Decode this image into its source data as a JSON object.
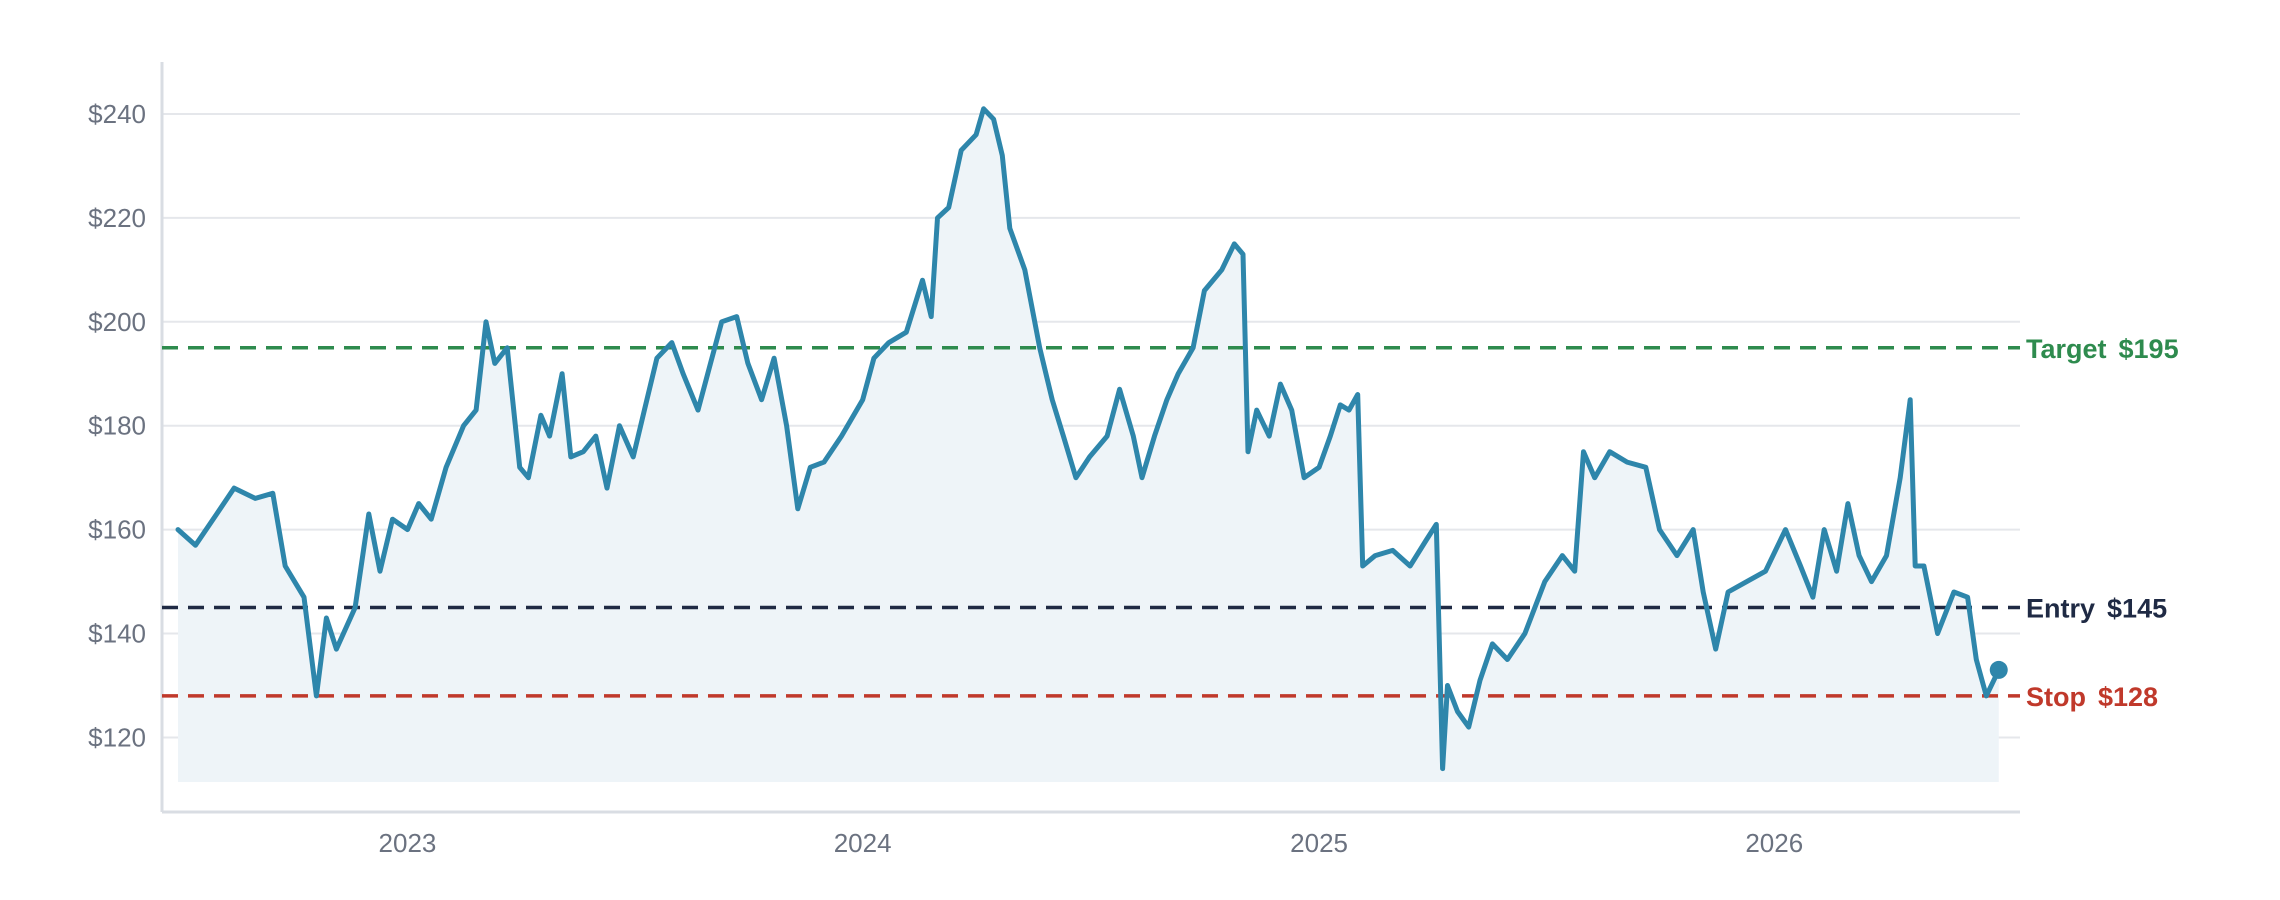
{
  "chart_data": {
    "type": "line",
    "title": "",
    "xlabel": "",
    "ylabel": "",
    "x_range": [
      "2022-07-01",
      "2026-07-01"
    ],
    "ylim": [
      107,
      250
    ],
    "grid": {
      "horizontal": true,
      "vertical": false
    },
    "y_ticks": [
      {
        "value": 120,
        "label": "$120"
      },
      {
        "value": 140,
        "label": "$140"
      },
      {
        "value": 160,
        "label": "$160"
      },
      {
        "value": 180,
        "label": "$180"
      },
      {
        "value": 200,
        "label": "$200"
      },
      {
        "value": 220,
        "label": "$220"
      },
      {
        "value": 240,
        "label": "$240"
      }
    ],
    "x_ticks": [
      {
        "value": "2023-01-01",
        "label": "2023"
      },
      {
        "value": "2024-01-01",
        "label": "2024"
      },
      {
        "value": "2025-01-01",
        "label": "2025"
      },
      {
        "value": "2026-01-01",
        "label": "2026"
      }
    ],
    "reference_lines": [
      {
        "label": "Target",
        "value_label": "$195",
        "value": 195,
        "color": "#2e8b4e"
      },
      {
        "label": "Entry",
        "value_label": "$145",
        "value": 145,
        "color": "#1f2a44"
      },
      {
        "label": "Stop",
        "value_label": "$128",
        "value": 128,
        "color": "#c0392b"
      }
    ],
    "series": [
      {
        "color": "#2e86ab",
        "area_fill": "#eef4f8",
        "points": [
          [
            "2022-07-01",
            160
          ],
          [
            "2022-07-15",
            157
          ],
          [
            "2022-08-01",
            163
          ],
          [
            "2022-08-15",
            168
          ],
          [
            "2022-09-01",
            166
          ],
          [
            "2022-09-15",
            167
          ],
          [
            "2022-09-25",
            153
          ],
          [
            "2022-10-10",
            147
          ],
          [
            "2022-10-20",
            128
          ],
          [
            "2022-10-28",
            143
          ],
          [
            "2022-11-05",
            137
          ],
          [
            "2022-11-20",
            145
          ],
          [
            "2022-12-01",
            163
          ],
          [
            "2022-12-10",
            152
          ],
          [
            "2022-12-20",
            162
          ],
          [
            "2023-01-01",
            160
          ],
          [
            "2023-01-10",
            165
          ],
          [
            "2023-01-20",
            162
          ],
          [
            "2023-02-01",
            172
          ],
          [
            "2023-02-15",
            180
          ],
          [
            "2023-02-25",
            183
          ],
          [
            "2023-03-05",
            200
          ],
          [
            "2023-03-12",
            192
          ],
          [
            "2023-03-22",
            195
          ],
          [
            "2023-04-01",
            172
          ],
          [
            "2023-04-08",
            170
          ],
          [
            "2023-04-18",
            182
          ],
          [
            "2023-04-25",
            178
          ],
          [
            "2023-05-05",
            190
          ],
          [
            "2023-05-12",
            174
          ],
          [
            "2023-05-22",
            175
          ],
          [
            "2023-06-01",
            178
          ],
          [
            "2023-06-10",
            168
          ],
          [
            "2023-06-20",
            180
          ],
          [
            "2023-07-01",
            174
          ],
          [
            "2023-07-10",
            183
          ],
          [
            "2023-07-20",
            193
          ],
          [
            "2023-08-01",
            196
          ],
          [
            "2023-08-10",
            190
          ],
          [
            "2023-08-22",
            183
          ],
          [
            "2023-09-01",
            192
          ],
          [
            "2023-09-10",
            200
          ],
          [
            "2023-09-22",
            201
          ],
          [
            "2023-10-01",
            192
          ],
          [
            "2023-10-12",
            185
          ],
          [
            "2023-10-22",
            193
          ],
          [
            "2023-11-01",
            180
          ],
          [
            "2023-11-10",
            164
          ],
          [
            "2023-11-20",
            172
          ],
          [
            "2023-12-01",
            173
          ],
          [
            "2023-12-15",
            178
          ],
          [
            "2024-01-01",
            185
          ],
          [
            "2024-01-10",
            193
          ],
          [
            "2024-01-22",
            196
          ],
          [
            "2024-02-05",
            198
          ],
          [
            "2024-02-18",
            208
          ],
          [
            "2024-02-25",
            201
          ],
          [
            "2024-03-01",
            220
          ],
          [
            "2024-03-10",
            222
          ],
          [
            "2024-03-20",
            233
          ],
          [
            "2024-04-01",
            236
          ],
          [
            "2024-04-07",
            241
          ],
          [
            "2024-04-15",
            239
          ],
          [
            "2024-04-22",
            232
          ],
          [
            "2024-04-28",
            218
          ],
          [
            "2024-05-10",
            210
          ],
          [
            "2024-05-22",
            195
          ],
          [
            "2024-06-01",
            185
          ],
          [
            "2024-06-10",
            178
          ],
          [
            "2024-06-20",
            170
          ],
          [
            "2024-07-01",
            174
          ],
          [
            "2024-07-15",
            178
          ],
          [
            "2024-07-25",
            187
          ],
          [
            "2024-08-05",
            178
          ],
          [
            "2024-08-12",
            170
          ],
          [
            "2024-08-22",
            178
          ],
          [
            "2024-09-01",
            185
          ],
          [
            "2024-09-10",
            190
          ],
          [
            "2024-09-22",
            195
          ],
          [
            "2024-10-01",
            206
          ],
          [
            "2024-10-15",
            210
          ],
          [
            "2024-10-25",
            215
          ],
          [
            "2024-11-01",
            213
          ],
          [
            "2024-11-05",
            175
          ],
          [
            "2024-11-12",
            183
          ],
          [
            "2024-11-22",
            178
          ],
          [
            "2024-12-01",
            188
          ],
          [
            "2024-12-10",
            183
          ],
          [
            "2024-12-20",
            170
          ],
          [
            "2025-01-01",
            172
          ],
          [
            "2025-01-10",
            178
          ],
          [
            "2025-01-18",
            184
          ],
          [
            "2025-01-25",
            183
          ],
          [
            "2025-02-01",
            186
          ],
          [
            "2025-02-05",
            153
          ],
          [
            "2025-02-15",
            155
          ],
          [
            "2025-03-01",
            156
          ],
          [
            "2025-03-15",
            153
          ],
          [
            "2025-03-28",
            158
          ],
          [
            "2025-04-05",
            161
          ],
          [
            "2025-04-10",
            114
          ],
          [
            "2025-04-14",
            130
          ],
          [
            "2025-04-22",
            125
          ],
          [
            "2025-05-01",
            122
          ],
          [
            "2025-05-10",
            131
          ],
          [
            "2025-05-20",
            138
          ],
          [
            "2025-06-01",
            135
          ],
          [
            "2025-06-15",
            140
          ],
          [
            "2025-07-01",
            150
          ],
          [
            "2025-07-15",
            155
          ],
          [
            "2025-07-25",
            152
          ],
          [
            "2025-08-01",
            175
          ],
          [
            "2025-08-10",
            170
          ],
          [
            "2025-08-22",
            175
          ],
          [
            "2025-09-05",
            173
          ],
          [
            "2025-09-20",
            172
          ],
          [
            "2025-10-01",
            160
          ],
          [
            "2025-10-15",
            155
          ],
          [
            "2025-10-28",
            160
          ],
          [
            "2025-11-05",
            148
          ],
          [
            "2025-11-15",
            137
          ],
          [
            "2025-11-25",
            148
          ],
          [
            "2025-12-10",
            150
          ],
          [
            "2025-12-25",
            152
          ],
          [
            "2026-01-10",
            160
          ],
          [
            "2026-01-22",
            153
          ],
          [
            "2026-02-01",
            147
          ],
          [
            "2026-02-10",
            160
          ],
          [
            "2026-02-20",
            152
          ],
          [
            "2026-03-01",
            165
          ],
          [
            "2026-03-10",
            155
          ],
          [
            "2026-03-20",
            150
          ],
          [
            "2026-04-01",
            155
          ],
          [
            "2026-04-12",
            170
          ],
          [
            "2026-04-20",
            185
          ],
          [
            "2026-04-24",
            153
          ],
          [
            "2026-05-01",
            153
          ],
          [
            "2026-05-12",
            140
          ],
          [
            "2026-05-25",
            148
          ],
          [
            "2026-06-05",
            147
          ],
          [
            "2026-06-12",
            135
          ],
          [
            "2026-06-20",
            128
          ],
          [
            "2026-06-30",
            133
          ]
        ]
      }
    ]
  }
}
